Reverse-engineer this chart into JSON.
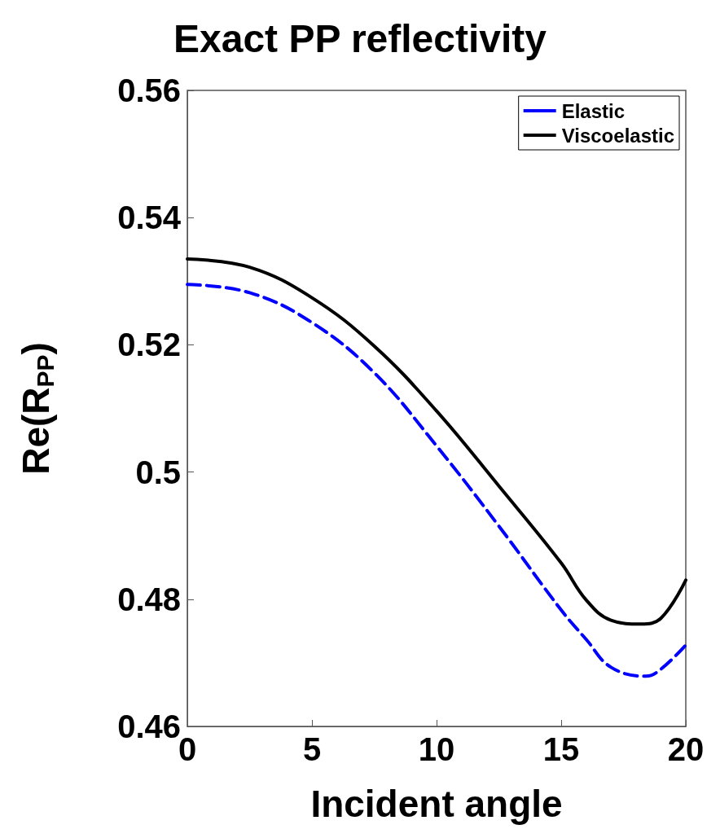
{
  "chart_data": {
    "type": "line",
    "title": "Exact PP reflectivity",
    "xlabel": "Incident angle",
    "ylabel": "Re(R$_{PP}$)",
    "xlim": [
      0,
      20
    ],
    "xticks": [
      0,
      5,
      10,
      15,
      20
    ],
    "ylim": [
      0.46,
      0.56
    ],
    "yticks": [
      0.46,
      0.48,
      0.5,
      0.52,
      0.54,
      0.56
    ],
    "grid": false,
    "legend": "top right",
    "marker": "none",
    "series": [
      {
        "name": "Elastic",
        "color": "#0000ff",
        "line_style": "dashed",
        "x": [
          0,
          2.5,
          5,
          7.5,
          10,
          12.5,
          15,
          16,
          17,
          18.4,
          19,
          20
        ],
        "values": [
          0.5295,
          0.5282,
          0.5235,
          0.5156,
          0.5041,
          0.4915,
          0.4783,
          0.4737,
          0.4693,
          0.4679,
          0.469,
          0.4728
        ]
      },
      {
        "name": "Viscoelastic",
        "color": "#000000",
        "line_style": "solid",
        "x": [
          0,
          2.5,
          5,
          7.5,
          10,
          12.5,
          15,
          16,
          17,
          18.2,
          19,
          20
        ],
        "values": [
          0.5335,
          0.5322,
          0.5274,
          0.5198,
          0.5096,
          0.4978,
          0.4857,
          0.4799,
          0.4767,
          0.4761,
          0.477,
          0.483
        ]
      }
    ]
  }
}
